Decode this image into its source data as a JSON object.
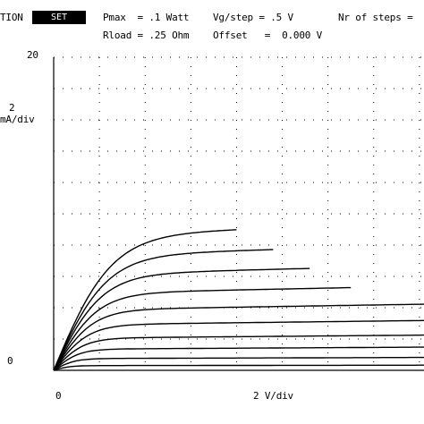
{
  "header": {
    "mode_label": "TION",
    "mode_badge": "SET",
    "pmax": "Pmax  = .1 Watt",
    "rload": "Rload = .25 Ohm",
    "vg_step": "Vg/step = .5 V",
    "offset": "Offset   =  0.000 V",
    "steps": "Nr of steps ="
  },
  "colors": {
    "background": "#ffffff",
    "trace": "#000000",
    "badge": "#000000"
  },
  "chart_data": {
    "type": "line",
    "title": "",
    "ylabel_scale": "2",
    "ylabel_unit": "mA/div",
    "xlabel": "2 V/div",
    "y_top_label": "20",
    "y_zero_label": "0",
    "x_zero_label": "0",
    "xlim": [
      0,
      16.2
    ],
    "ylim": [
      0,
      20
    ],
    "grid": true,
    "series": [
      {
        "sat": 8.6,
        "knee": 2.5,
        "x_end": 8.0
      },
      {
        "sat": 7.3,
        "knee": 2.3,
        "x_end": 9.6
      },
      {
        "sat": 6.1,
        "knee": 2.1,
        "x_end": 11.2
      },
      {
        "sat": 4.9,
        "knee": 1.9,
        "x_end": 13.0
      },
      {
        "sat": 3.85,
        "knee": 1.7,
        "x_end": 16.2
      },
      {
        "sat": 2.9,
        "knee": 1.5,
        "x_end": 16.2
      },
      {
        "sat": 2.05,
        "knee": 1.3,
        "x_end": 16.2
      },
      {
        "sat": 1.35,
        "knee": 1.1,
        "x_end": 16.2
      },
      {
        "sat": 0.75,
        "knee": 0.9,
        "x_end": 16.2
      },
      {
        "sat": 0.3,
        "knee": 0.7,
        "x_end": 16.2
      }
    ]
  }
}
